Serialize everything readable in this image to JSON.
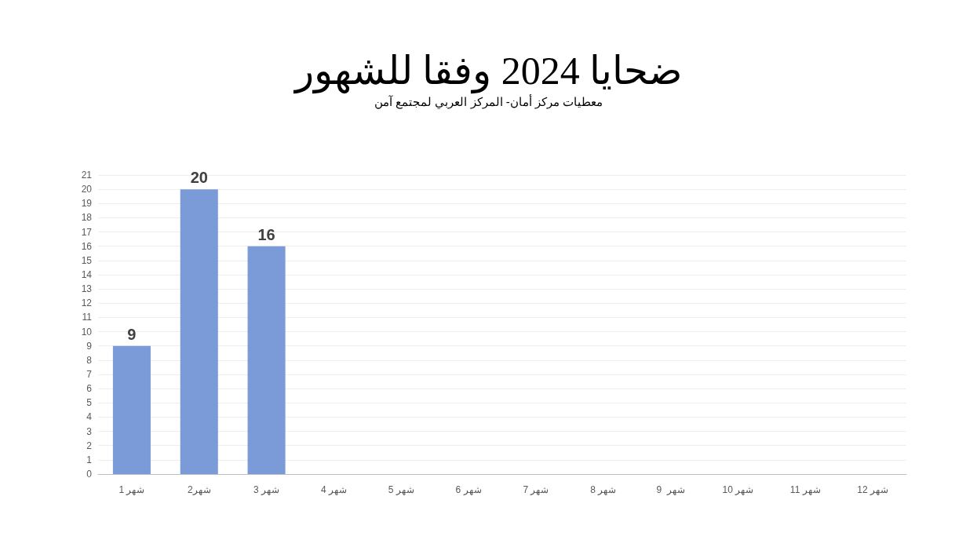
{
  "chart_data": {
    "type": "bar",
    "title": "ضحايا 2024 وفقا للشهور",
    "subtitle": "معطيات مركز أمان- المركز العربي لمجتمع آمن",
    "categories": [
      "شهر 1",
      "شهر2",
      "شهر 3",
      "شهر 4",
      "شهر 5",
      "شهر 6",
      "شهر 7",
      "شهر 8",
      "شهر  9",
      "شهر 10",
      "شهر 11",
      "شهر 12"
    ],
    "values": [
      9,
      20,
      16,
      null,
      null,
      null,
      null,
      null,
      null,
      null,
      null,
      null
    ],
    "color": "#7a9ad8",
    "data_labels": true,
    "grid": "y",
    "ylim": [
      0,
      21
    ],
    "yticks": [
      0,
      1,
      2,
      3,
      4,
      5,
      6,
      7,
      8,
      9,
      10,
      11,
      12,
      13,
      14,
      15,
      16,
      17,
      18,
      19,
      20,
      21
    ]
  }
}
